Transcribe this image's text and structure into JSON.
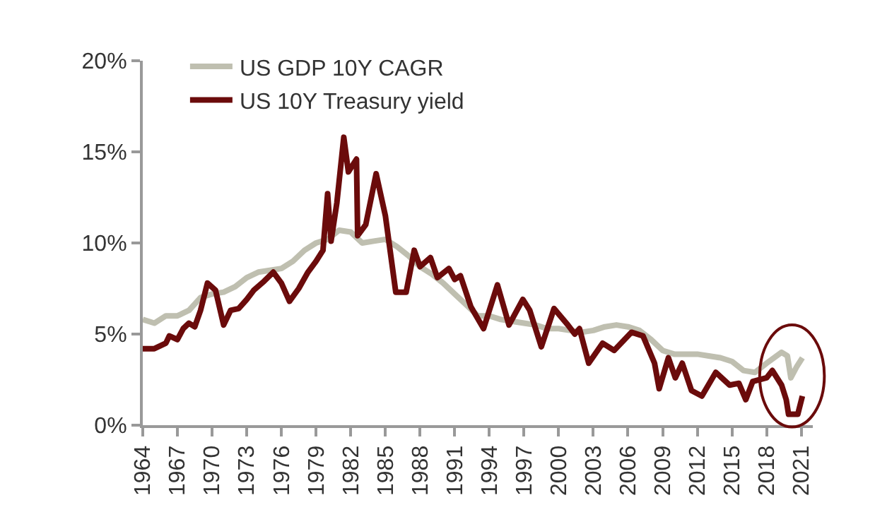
{
  "chart_data": {
    "type": "line",
    "series": [
      {
        "name": "US GDP 10Y CAGR",
        "color": "#bfbfb0",
        "x": [
          1964,
          1965,
          1966,
          1967,
          1968,
          1969,
          1970,
          1971,
          1972,
          1973,
          1974,
          1975,
          1976,
          1977,
          1978,
          1979,
          1980,
          1981,
          1982,
          1983,
          1984,
          1985,
          1986,
          1987,
          1988,
          1989,
          1990,
          1991,
          1992,
          1993,
          1994,
          1995,
          1996,
          1997,
          1998,
          1999,
          2000,
          2001,
          2002,
          2003,
          2004,
          2005,
          2006,
          2007,
          2008,
          2009,
          2010,
          2011,
          2012,
          2013,
          2014,
          2015,
          2016,
          2017,
          2018,
          2019.3,
          2019.8,
          2020.1,
          2020.6,
          2021.1
        ],
        "values": [
          5.8,
          5.6,
          6.0,
          6.0,
          6.3,
          7.0,
          7.2,
          7.3,
          7.6,
          8.1,
          8.4,
          8.5,
          8.6,
          9.0,
          9.6,
          10.0,
          10.2,
          10.7,
          10.6,
          10.0,
          10.1,
          10.2,
          9.8,
          9.3,
          8.7,
          8.3,
          7.8,
          7.2,
          6.6,
          6.0,
          6.0,
          5.8,
          5.7,
          5.6,
          5.5,
          5.3,
          5.3,
          5.2,
          5.1,
          5.2,
          5.4,
          5.5,
          5.4,
          5.2,
          4.7,
          4.1,
          3.9,
          3.9,
          3.9,
          3.8,
          3.7,
          3.5,
          3.0,
          2.9,
          3.4,
          4.0,
          3.8,
          2.6,
          3.2,
          3.7
        ]
      },
      {
        "name": "US 10Y Treasury yield",
        "color": "#6b0b0b",
        "x": [
          1964,
          1965,
          1966,
          1966.3,
          1967,
          1967.5,
          1968,
          1968.5,
          1969,
          1969.6,
          1970.3,
          1971,
          1971.6,
          1972.3,
          1973,
          1973.6,
          1974.5,
          1975.3,
          1976,
          1976.7,
          1977.5,
          1978.3,
          1979,
          1979.6,
          1980,
          1980.3,
          1980.8,
          1981.4,
          1981.8,
          1982.5,
          1982.6,
          1983.3,
          1984.2,
          1985,
          1985.9,
          1986.8,
          1987.5,
          1988,
          1988.9,
          1989.5,
          1990.5,
          1991,
          1991.5,
          1992.4,
          1993.5,
          1994.7,
          1995.7,
          1996.9,
          1997.5,
          1998.5,
          1999.6,
          2000.8,
          2001.4,
          2001.8,
          2002.6,
          2003.8,
          2004.8,
          2006.3,
          2007.3,
          2008.3,
          2008.7,
          2009.5,
          2010.1,
          2010.7,
          2011.5,
          2012.4,
          2013.6,
          2014.8,
          2015.6,
          2016.2,
          2016.8,
          2018,
          2018.5,
          2019.3,
          2019.7,
          2019.9,
          2020.7,
          2021.1
        ],
        "values": [
          4.2,
          4.2,
          4.5,
          4.9,
          4.7,
          5.3,
          5.6,
          5.4,
          6.3,
          7.8,
          7.4,
          5.5,
          6.3,
          6.4,
          6.9,
          7.4,
          7.9,
          8.4,
          7.8,
          6.8,
          7.5,
          8.4,
          9.0,
          9.6,
          12.7,
          10.1,
          12.2,
          15.8,
          13.9,
          14.6,
          10.4,
          11.0,
          13.8,
          11.5,
          7.3,
          7.3,
          9.6,
          8.7,
          9.2,
          8.1,
          8.6,
          8.0,
          8.2,
          6.5,
          5.3,
          7.7,
          5.5,
          6.9,
          6.3,
          4.3,
          6.4,
          5.5,
          5.0,
          5.3,
          3.4,
          4.5,
          4.1,
          5.1,
          4.9,
          3.4,
          2.0,
          3.7,
          2.6,
          3.4,
          1.9,
          1.6,
          2.9,
          2.2,
          2.3,
          1.4,
          2.4,
          2.6,
          3.0,
          2.2,
          1.4,
          0.6,
          0.6,
          1.6
        ]
      }
    ],
    "xlim": [
      1964,
      2022
    ],
    "xticks": [
      1964,
      1967,
      1970,
      1973,
      1976,
      1979,
      1982,
      1985,
      1988,
      1991,
      1994,
      1997,
      2000,
      2003,
      2006,
      2009,
      2012,
      2015,
      2018,
      2021
    ],
    "ylim": [
      0,
      20
    ],
    "yticks": [
      {
        "value": 0,
        "label": "0%"
      },
      {
        "value": 5,
        "label": "5%"
      },
      {
        "value": 10,
        "label": "10%"
      },
      {
        "value": 15,
        "label": "15%"
      },
      {
        "value": 20,
        "label": "20%"
      }
    ],
    "legend": "top left",
    "marker": "none",
    "line_style": "solid"
  }
}
